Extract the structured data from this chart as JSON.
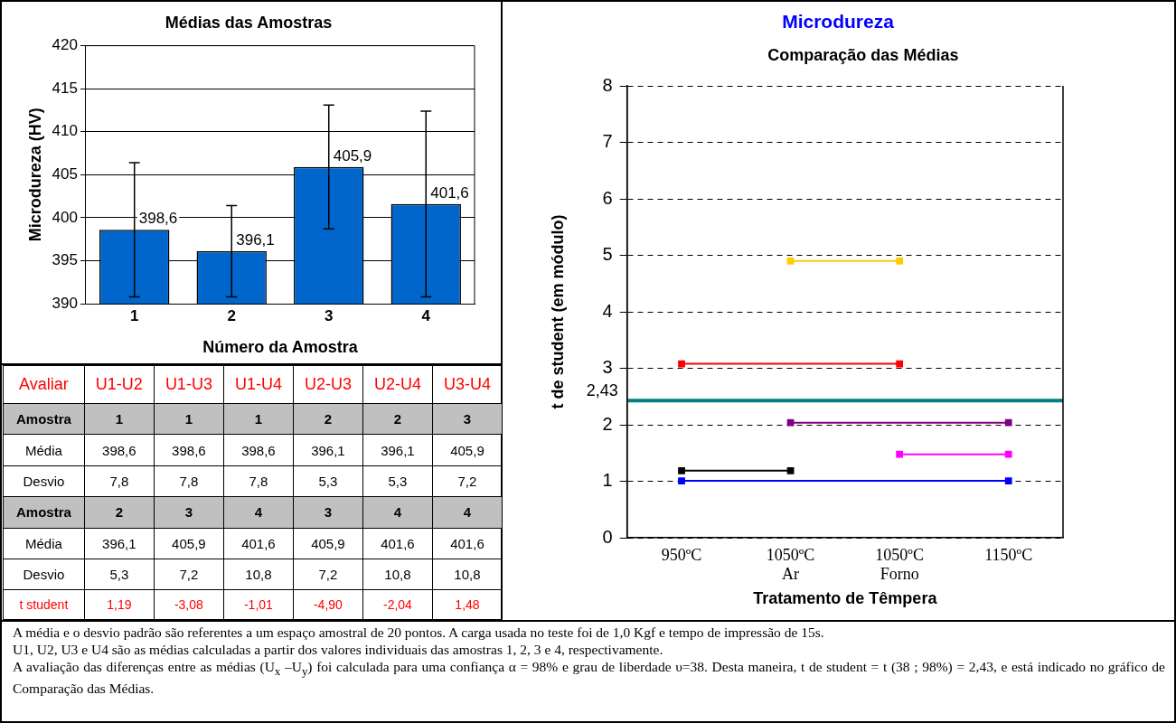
{
  "chart_data": [
    {
      "type": "bar",
      "title": "Médias das Amostras",
      "xlabel": "Número da Amostra",
      "ylabel": "Microdureza (HV)",
      "categories": [
        "1",
        "2",
        "3",
        "4"
      ],
      "values": [
        398.6,
        396.1,
        405.9,
        401.6
      ],
      "errors": [
        7.8,
        5.3,
        7.2,
        10.8
      ],
      "value_labels": [
        "398,6",
        "396,1",
        "405,9",
        "401,6"
      ],
      "color": "#0066cc",
      "ylim": [
        390,
        420
      ],
      "yticks": [
        390,
        395,
        400,
        405,
        410,
        415,
        420
      ],
      "grid": "y",
      "legend": false
    },
    {
      "type": "line",
      "title": "Microdureza",
      "subtitle": "Comparação das Médias",
      "xlabel": "Tratamento de Têmpera",
      "ylabel": "t de student (em módulo)",
      "categories": [
        "950ºC",
        "1050ºC\nAr",
        "1050ºC\nForno",
        "1150ºC"
      ],
      "ylim": [
        0,
        8
      ],
      "yticks": [
        0,
        1,
        2,
        3,
        4,
        5,
        6,
        7,
        8
      ],
      "grid": "y",
      "legend": false,
      "marker": "square",
      "line_style": "solid",
      "series": [
        {
          "color": "#ffcc00",
          "values": [
            null,
            4.9,
            4.9,
            null
          ]
        },
        {
          "color": "#ff0000",
          "values": [
            3.08,
            null,
            3.08,
            null
          ]
        },
        {
          "color": "#800080",
          "values": [
            null,
            2.04,
            null,
            2.04
          ]
        },
        {
          "color": "#ff00ff",
          "values": [
            null,
            null,
            1.48,
            1.48
          ]
        },
        {
          "color": "#000000",
          "values": [
            1.19,
            1.19,
            null,
            null
          ]
        },
        {
          "color": "#0000ff",
          "values": [
            1.01,
            null,
            null,
            1.01
          ]
        }
      ],
      "ref_lines": [
        {
          "axis": "y",
          "value": 2.43,
          "label": "2,43",
          "color": "#008080"
        }
      ]
    },
    {
      "type": "other",
      "title": "Avaliar",
      "categories": [
        "U1-U2",
        "U1-U3",
        "U1-U4",
        "U2-U3",
        "U2-U4",
        "U3-U4"
      ],
      "y_categories": [
        "Amostra",
        "Média",
        "Desvio",
        "Amostra",
        "Média",
        "Desvio",
        "t student"
      ],
      "annotations": [
        "1",
        "1",
        "1",
        "2",
        "2",
        "3",
        "398,6",
        "398,6",
        "398,6",
        "396,1",
        "396,1",
        "405,9",
        "7,8",
        "7,8",
        "7,8",
        "5,3",
        "5,3",
        "7,2",
        "2",
        "3",
        "4",
        "3",
        "4",
        "4",
        "396,1",
        "405,9",
        "401,6",
        "405,9",
        "401,6",
        "401,6",
        "5,3",
        "7,2",
        "10,8",
        "7,2",
        "10,8",
        "10,8",
        "1,19",
        "-3,08",
        "-1,01",
        "-4,90",
        "-2,04",
        "1,48"
      ]
    },
    {
      "type": "other",
      "annotations": [
        "A média e o desvio padrão são referentes a um espaço amostral de 20 pontos. A carga usada no teste foi de 1,0 Kgf e tempo de impressão de 15s.",
        "U1, U2, U3 e U4 são as médias calculadas a partir dos valores individuais das amostras 1, 2, 3 e 4, respectivamente.",
        "A avaliação das diferenças entre as médias (U$_{x}$ –U$_{y}$) foi calculada para uma confiança α = 98% e grau de liberdade υ=38. Desta maneira, t de student = t (38 ; 98%) = 2,43, e está indicado no gráfico de Comparação das Médias."
      ]
    }
  ]
}
